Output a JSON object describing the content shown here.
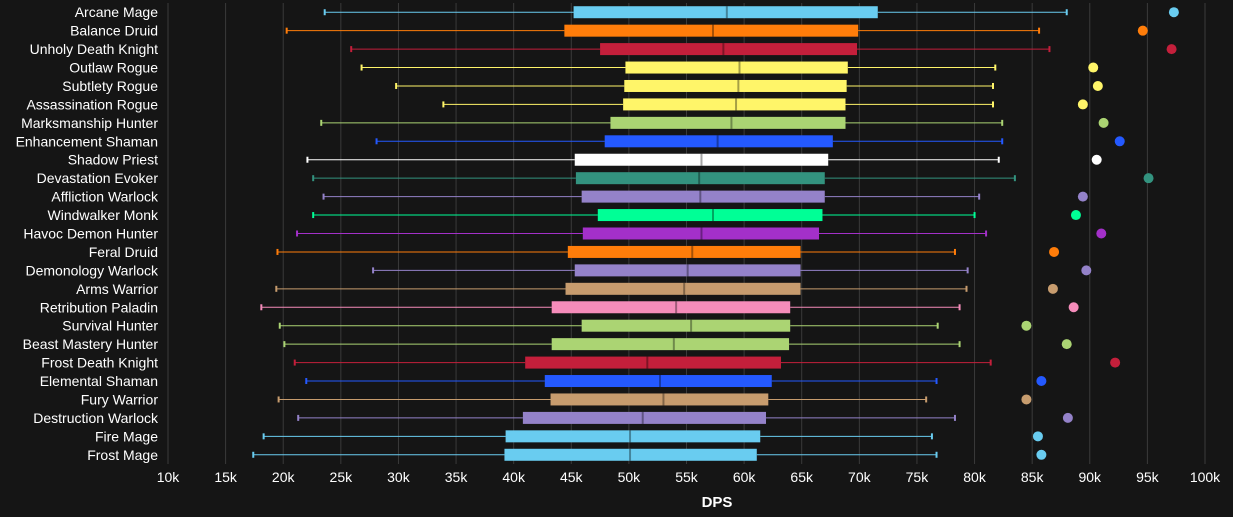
{
  "chart_data": {
    "type": "box",
    "xlabel": "DPS",
    "xlim": [
      10000,
      100000
    ],
    "x_ticks": [
      10000,
      15000,
      20000,
      25000,
      30000,
      35000,
      40000,
      45000,
      50000,
      55000,
      60000,
      65000,
      70000,
      75000,
      80000,
      85000,
      90000,
      95000,
      100000
    ],
    "x_tick_labels": [
      "10k",
      "15k",
      "20k",
      "25k",
      "30k",
      "35k",
      "40k",
      "45k",
      "50k",
      "55k",
      "60k",
      "65k",
      "70k",
      "75k",
      "80k",
      "85k",
      "90k",
      "95k",
      "100k"
    ],
    "grid": true,
    "categories": [
      "Arcane Mage",
      "Balance Druid",
      "Unholy Death Knight",
      "Outlaw Rogue",
      "Subtlety Rogue",
      "Assassination Rogue",
      "Marksmanship Hunter",
      "Enhancement Shaman",
      "Shadow Priest",
      "Devastation Evoker",
      "Affliction Warlock",
      "Windwalker Monk",
      "Havoc Demon Hunter",
      "Feral Druid",
      "Demonology Warlock",
      "Arms Warrior",
      "Retribution Paladin",
      "Survival Hunter",
      "Beast Mastery Hunter",
      "Frost Death Knight",
      "Elemental Shaman",
      "Fury Warrior",
      "Destruction Warlock",
      "Fire Mage",
      "Frost Mage"
    ],
    "series": [
      {
        "min": 23600,
        "q1": 45200,
        "median": 58500,
        "q3": 71600,
        "max": 88000,
        "outlier": 97300,
        "color": "#69ccf0"
      },
      {
        "min": 20300,
        "q1": 44400,
        "median": 57300,
        "q3": 69900,
        "max": 85600,
        "outlier": 94600,
        "color": "#ff7d0a"
      },
      {
        "min": 25900,
        "q1": 47500,
        "median": 58200,
        "q3": 69800,
        "max": 86500,
        "outlier": 97100,
        "color": "#c41f3b"
      },
      {
        "min": 26800,
        "q1": 49700,
        "median": 59600,
        "q3": 69000,
        "max": 81800,
        "outlier": 90300,
        "color": "#fff569"
      },
      {
        "min": 29800,
        "q1": 49600,
        "median": 59500,
        "q3": 68900,
        "max": 81600,
        "outlier": 90700,
        "color": "#fff569"
      },
      {
        "min": 33900,
        "q1": 49500,
        "median": 59300,
        "q3": 68800,
        "max": 81600,
        "outlier": 89400,
        "color": "#fff569"
      },
      {
        "min": 23300,
        "q1": 48400,
        "median": 58900,
        "q3": 68800,
        "max": 82400,
        "outlier": 91200,
        "color": "#abd473"
      },
      {
        "min": 28100,
        "q1": 47900,
        "median": 57700,
        "q3": 67700,
        "max": 82400,
        "outlier": 92600,
        "color": "#2459ff"
      },
      {
        "min": 22100,
        "q1": 45300,
        "median": 56300,
        "q3": 67300,
        "max": 82100,
        "outlier": 90600,
        "color": "#ffffff"
      },
      {
        "min": 22600,
        "q1": 45400,
        "median": 56100,
        "q3": 67000,
        "max": 83500,
        "outlier": 95100,
        "color": "#33937f"
      },
      {
        "min": 23500,
        "q1": 45900,
        "median": 56200,
        "q3": 67000,
        "max": 80400,
        "outlier": 89400,
        "color": "#9482c9"
      },
      {
        "min": 22600,
        "q1": 47300,
        "median": 57300,
        "q3": 66800,
        "max": 80000,
        "outlier": 88800,
        "color": "#00ff96"
      },
      {
        "min": 21200,
        "q1": 46000,
        "median": 56300,
        "q3": 66500,
        "max": 81000,
        "outlier": 91000,
        "color": "#a330c9"
      },
      {
        "min": 19500,
        "q1": 44700,
        "median": 55500,
        "q3": 64900,
        "max": 78300,
        "outlier": 86900,
        "color": "#ff7d0a"
      },
      {
        "min": 27800,
        "q1": 45300,
        "median": 55100,
        "q3": 64900,
        "max": 79400,
        "outlier": 89700,
        "color": "#9482c9"
      },
      {
        "min": 19400,
        "q1": 44500,
        "median": 54800,
        "q3": 64900,
        "max": 79300,
        "outlier": 86800,
        "color": "#c79c6e"
      },
      {
        "min": 18100,
        "q1": 43300,
        "median": 54100,
        "q3": 64000,
        "max": 78700,
        "outlier": 88600,
        "color": "#f58cba"
      },
      {
        "min": 19700,
        "q1": 45900,
        "median": 55400,
        "q3": 64000,
        "max": 76800,
        "outlier": 84500,
        "color": "#abd473"
      },
      {
        "min": 20100,
        "q1": 43300,
        "median": 53900,
        "q3": 63900,
        "max": 78700,
        "outlier": 88000,
        "color": "#abd473"
      },
      {
        "min": 21000,
        "q1": 41000,
        "median": 51600,
        "q3": 63200,
        "max": 81400,
        "outlier": 92200,
        "color": "#c41f3b"
      },
      {
        "min": 22000,
        "q1": 42700,
        "median": 52700,
        "q3": 62400,
        "max": 76700,
        "outlier": 85800,
        "color": "#2459ff"
      },
      {
        "min": 19600,
        "q1": 43200,
        "median": 53000,
        "q3": 62100,
        "max": 75800,
        "outlier": 84500,
        "color": "#c79c6e"
      },
      {
        "min": 21300,
        "q1": 40800,
        "median": 51200,
        "q3": 61900,
        "max": 78300,
        "outlier": 88100,
        "color": "#9482c9"
      },
      {
        "min": 18300,
        "q1": 39300,
        "median": 50100,
        "q3": 61400,
        "max": 76300,
        "outlier": 85500,
        "color": "#69ccf0"
      },
      {
        "min": 17400,
        "q1": 39200,
        "median": 50100,
        "q3": 61100,
        "max": 76700,
        "outlier": 85800,
        "color": "#69ccf0"
      }
    ]
  }
}
